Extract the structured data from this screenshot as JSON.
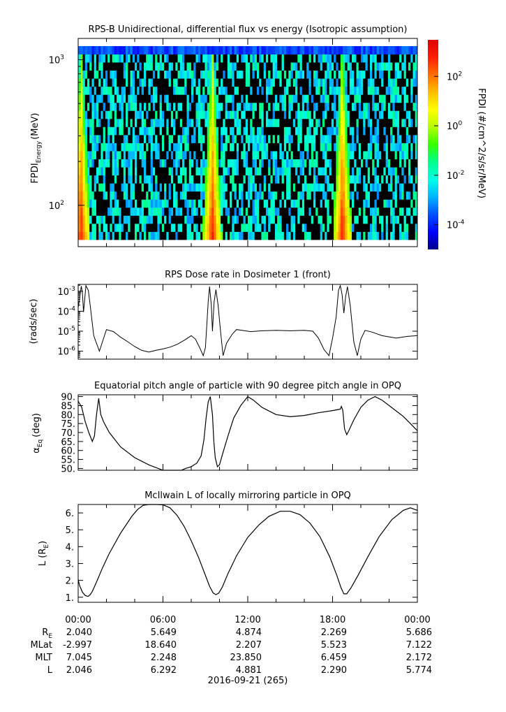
{
  "chart_data": [
    {
      "type": "heatmap",
      "title": "RPS-B  Unidirectional, differential flux vs energy (Isotropic assumption)",
      "ylabel": "FPDI",
      "ylabel_sub": "Energy",
      "ylabel_unit": "(MeV)",
      "y_scale": "log",
      "ylim": [
        52,
        1400
      ],
      "y_ticks": [
        {
          "base": "10",
          "exp": "3",
          "value": 1000
        },
        {
          "base": "10",
          "exp": "2",
          "value": 100
        }
      ],
      "x_range_hours": [
        0,
        24
      ],
      "z_scale": "log",
      "zlim": [
        1e-05,
        3000
      ],
      "colorbar_label": "FPDI (#/cm^2/s/sr/MeV)",
      "colorbar_ticks": [
        {
          "base": "10",
          "exp": "2",
          "value": 100
        },
        {
          "base": "10",
          "exp": "0",
          "value": 1
        },
        {
          "base": "10",
          "exp": "-2",
          "value": 0.01
        },
        {
          "base": "10",
          "exp": "-4",
          "value": 0.0001
        }
      ],
      "belt_passes_hours": [
        0.2,
        9.5,
        18.7
      ]
    },
    {
      "type": "line",
      "title": "RPS  Dose rate in Dosimeter 1 (front)",
      "ylabel": "(rads/sec)",
      "y_scale": "log",
      "ylim": [
        4e-07,
        0.0022
      ],
      "y_ticks": [
        {
          "base": "10",
          "exp": "-3",
          "value": 0.001
        },
        {
          "base": "10",
          "exp": "-4",
          "value": 0.0001
        },
        {
          "base": "10",
          "exp": "-5",
          "value": 1e-05
        },
        {
          "base": "10",
          "exp": "-6",
          "value": 1e-06
        }
      ],
      "x": [
        0,
        0.1,
        0.17,
        0.22,
        0.3,
        0.38,
        0.55,
        0.72,
        0.85,
        1.1,
        1.5,
        2,
        2.5,
        3,
        3.5,
        4,
        4.5,
        5,
        5.5,
        6,
        6.5,
        7,
        7.5,
        8,
        8.3,
        8.6,
        8.85,
        9.0,
        9.1,
        9.2,
        9.3,
        9.42,
        9.5,
        9.62,
        9.75,
        9.9,
        10.05,
        10.25,
        10.5,
        10.9,
        11.2,
        11.6,
        12.2,
        13,
        14,
        15,
        16,
        16.6,
        17,
        17.4,
        17.75,
        18.0,
        18.25,
        18.42,
        18.55,
        18.67,
        18.8,
        18.92,
        19.05,
        19.25,
        19.5,
        19.75,
        20.0,
        20.3,
        20.8,
        21.5,
        22.5,
        23.3,
        24
      ],
      "y": [
        0.00015,
        0.0004,
        0.001,
        0.0018,
        0.0008,
        9e-05,
        0.0019,
        0.0011,
        0.0002,
        6e-06,
        1e-06,
        1.2e-05,
        9.5e-06,
        5e-06,
        3e-06,
        1.7e-06,
        1.1e-06,
        9e-07,
        1.1e-06,
        1.3e-06,
        1.6e-06,
        2.2e-06,
        3.5e-06,
        6e-06,
        4e-06,
        1.5e-06,
        6e-07,
        1.5e-06,
        2e-05,
        0.0003,
        0.0017,
        0.0002,
        1e-05,
        0.0003,
        0.0012,
        0.0002,
        1.5e-05,
        6e-07,
        2.5e-06,
        7e-06,
        1.2e-05,
        1.1e-05,
        9.5e-06,
        1.05e-05,
        1.1e-05,
        1.05e-05,
        1.1e-05,
        1e-05,
        4.5e-06,
        1.2e-06,
        6e-07,
        4.5e-06,
        5e-05,
        0.0011,
        0.0019,
        0.0007,
        8e-05,
        0.0005,
        0.0017,
        0.0002,
        3e-06,
        6e-07,
        4e-06,
        1.1e-05,
        9e-06,
        6e-06,
        4.5e-06,
        5.5e-06,
        6e-06
      ]
    },
    {
      "type": "line",
      "title": "Equatorial pitch angle of particle with 90 degree pitch angle in OPQ",
      "ylabel": "α",
      "ylabel_sub": "Eq",
      "ylabel_unit": "(deg)",
      "ylim": [
        49,
        91
      ],
      "y_ticks": [
        90,
        85,
        80,
        75,
        70,
        65,
        60,
        55,
        50
      ],
      "y_tick_labels": [
        "90.",
        "85.",
        "80.",
        "75.",
        "70.",
        "65.",
        "60.",
        "55.",
        "50."
      ],
      "x": [
        0,
        0.25,
        0.5,
        0.75,
        1.0,
        1.15,
        1.3,
        1.45,
        1.6,
        1.8,
        2.2,
        3,
        4,
        5,
        6,
        6.9,
        7.3,
        7.6,
        8.0,
        8.4,
        8.7,
        8.9,
        9.05,
        9.2,
        9.35,
        9.5,
        9.6,
        9.7,
        9.85,
        10.0,
        10.25,
        10.6,
        11.0,
        11.5,
        12.0,
        12.4,
        13,
        14,
        15,
        16,
        17,
        18,
        18.4,
        18.55,
        18.62,
        18.72,
        18.85,
        19.0,
        19.15,
        19.5,
        20,
        20.5,
        21,
        21.5,
        22,
        22.5,
        23,
        23.5,
        24
      ],
      "y": [
        87.5,
        84,
        76,
        70,
        65,
        68,
        80,
        89,
        80,
        76,
        70,
        62,
        56,
        52,
        49,
        49,
        49,
        50,
        51,
        53,
        57,
        66,
        78,
        87,
        90,
        80,
        65,
        56,
        51,
        52,
        59,
        68,
        78,
        85,
        90,
        88,
        84,
        80,
        78.8,
        79.5,
        81,
        82.2,
        82.8,
        83,
        84.5,
        82.5,
        72,
        68.8,
        71,
        77,
        84,
        88,
        90,
        88,
        85,
        82,
        79,
        75,
        71
      ]
    },
    {
      "type": "line",
      "title": "McIlwain L of locally mirroring particle in OPQ",
      "ylabel": "L (R",
      "ylabel_sub": "E",
      "ylabel_unit": ")",
      "ylim": [
        0.7,
        6.5
      ],
      "y_ticks": [
        6,
        5,
        4,
        3,
        2,
        1
      ],
      "y_tick_labels": [
        "6.",
        "5.",
        "4.",
        "3.",
        "2.",
        "1."
      ],
      "x": [
        0,
        0.1,
        0.3,
        0.5,
        0.7,
        0.85,
        1.0,
        1.3,
        1.7,
        2.2,
        3,
        3.8,
        4.2,
        4.6,
        5,
        5.5,
        6,
        6.5,
        7,
        7.5,
        8.0,
        8.5,
        9.0,
        9.3,
        9.55,
        9.75,
        9.95,
        10.2,
        10.6,
        11.2,
        12,
        12.8,
        13.5,
        14.3,
        15,
        15.7,
        16.4,
        17.1,
        17.8,
        18.3,
        18.6,
        18.8,
        19.0,
        19.3,
        19.8,
        20.5,
        21.3,
        22.2,
        23,
        23.5,
        24
      ],
      "y": [
        2.05,
        1.7,
        1.3,
        1.1,
        1.05,
        1.15,
        1.35,
        1.9,
        2.7,
        3.6,
        4.8,
        5.8,
        6.2,
        6.45,
        6.5,
        6.5,
        6.48,
        6.3,
        5.85,
        5.2,
        4.35,
        3.4,
        2.3,
        1.65,
        1.25,
        1.15,
        1.25,
        1.6,
        2.4,
        3.45,
        4.55,
        5.3,
        5.8,
        6.1,
        6.1,
        5.9,
        5.4,
        4.6,
        3.4,
        2.3,
        1.55,
        1.2,
        1.2,
        1.55,
        2.3,
        3.4,
        4.6,
        5.6,
        6.15,
        6.3,
        6.15
      ]
    }
  ],
  "x_axis": {
    "tick_labels": [
      "00:00",
      "06:00",
      "12:00",
      "18:00",
      "00:00"
    ],
    "tick_hours": [
      0,
      6,
      12,
      18,
      24
    ]
  },
  "ephemeris": {
    "rows": [
      {
        "label": "R",
        "label_sub": "E",
        "values": [
          "2.040",
          "5.649",
          "4.874",
          "2.269",
          "5.686"
        ]
      },
      {
        "label": "MLat",
        "label_sub": "",
        "values": [
          "-2.997",
          "18.640",
          "2.207",
          "5.523",
          "7.122"
        ]
      },
      {
        "label": "MLT",
        "label_sub": "",
        "values": [
          "7.045",
          "2.248",
          "23.850",
          "6.459",
          "2.172"
        ]
      },
      {
        "label": "L",
        "label_sub": "",
        "values": [
          "2.046",
          "6.292",
          "4.881",
          "2.290",
          "5.774"
        ]
      }
    ]
  },
  "date_label": "2016-09-21 (265)",
  "colors": {
    "trace": "#000000",
    "colormap": [
      "#00008c",
      "#0000ff",
      "#0050ff",
      "#00b4ff",
      "#00ffe6",
      "#00ff8c",
      "#32ff00",
      "#b4ff00",
      "#ffff00",
      "#ffbe00",
      "#ff6e00",
      "#ff1e00",
      "#dc0000"
    ]
  }
}
